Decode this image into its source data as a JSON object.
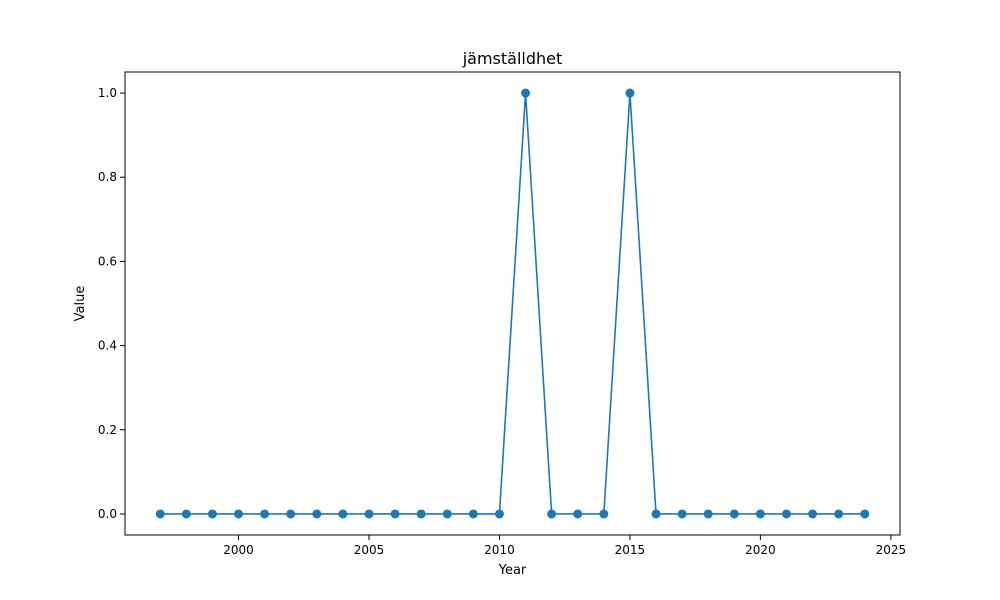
{
  "chart_data": {
    "type": "line",
    "title": "jämställdhet",
    "xlabel": "Year",
    "ylabel": "Value",
    "xlim": [
      1995.65,
      2025.35
    ],
    "ylim": [
      -0.05,
      1.05
    ],
    "xticks": [
      2000,
      2005,
      2010,
      2015,
      2020,
      2025
    ],
    "yticks": [
      0.0,
      0.2,
      0.4,
      0.6,
      0.8,
      1.0
    ],
    "xtick_labels": [
      "2000",
      "2005",
      "2010",
      "2015",
      "2020",
      "2025"
    ],
    "ytick_labels": [
      "0.0",
      "0.2",
      "0.4",
      "0.6",
      "0.8",
      "1.0"
    ],
    "grid": false,
    "marker": "circle",
    "line_color": "#1f77b4",
    "series": [
      {
        "x": [
          1997,
          1998,
          1999,
          2000,
          2001,
          2002,
          2003,
          2004,
          2005,
          2006,
          2007,
          2008,
          2009,
          2010,
          2011,
          2012,
          2013,
          2014,
          2015,
          2016,
          2017,
          2018,
          2019,
          2020,
          2021,
          2022,
          2023,
          2024
        ],
        "values": [
          0,
          0,
          0,
          0,
          0,
          0,
          0,
          0,
          0,
          0,
          0,
          0,
          0,
          0,
          1,
          0,
          0,
          0,
          1,
          0,
          0,
          0,
          0,
          0,
          0,
          0,
          0,
          0
        ]
      }
    ]
  }
}
